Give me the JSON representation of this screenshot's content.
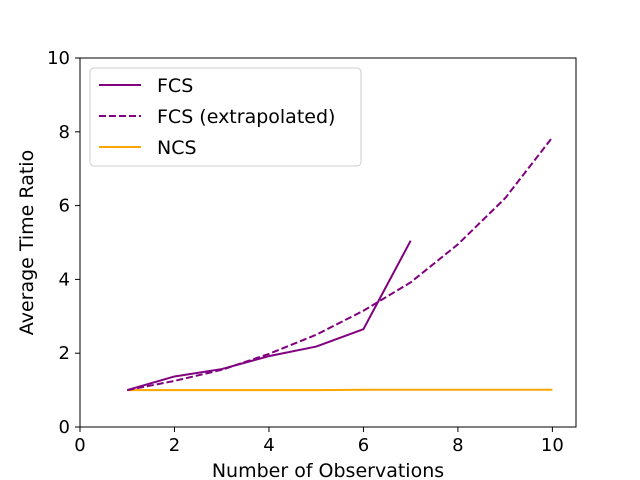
{
  "chart_data": {
    "type": "line",
    "title": "",
    "xlabel": "Number of Observations",
    "ylabel": "Average Time Ratio",
    "xlim": [
      0,
      10.5
    ],
    "ylim": [
      0,
      10
    ],
    "xticks": [
      0,
      2,
      4,
      6,
      8,
      10
    ],
    "yticks": [
      0,
      2,
      4,
      6,
      8,
      10
    ],
    "grid": false,
    "legend_position": "top-left",
    "series": [
      {
        "name": "FCS",
        "color": "#800080",
        "style": "solid",
        "x": [
          1,
          2,
          3,
          4,
          5,
          6,
          7
        ],
        "y": [
          1.0,
          1.37,
          1.57,
          1.92,
          2.18,
          2.65,
          5.05
        ]
      },
      {
        "name": "FCS (extrapolated)",
        "color": "#800080",
        "style": "dashed",
        "x": [
          1,
          2,
          3,
          4,
          5,
          6,
          7,
          8,
          9,
          10
        ],
        "y": [
          1.0,
          1.25,
          1.55,
          1.98,
          2.5,
          3.15,
          3.92,
          4.95,
          6.2,
          7.85
        ]
      },
      {
        "name": "NCS",
        "color": "#FFA500",
        "style": "solid",
        "x": [
          1,
          2,
          3,
          4,
          5,
          6,
          7,
          8,
          9,
          10
        ],
        "y": [
          1.0,
          1.0,
          1.0,
          1.0,
          1.0,
          1.01,
          1.01,
          1.01,
          1.01,
          1.01
        ]
      }
    ]
  }
}
